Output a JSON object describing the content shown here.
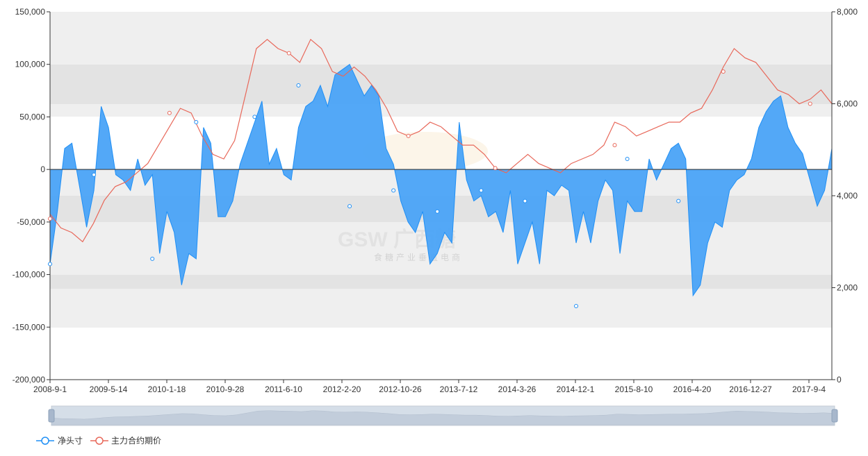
{
  "watermark": {
    "brand": "GSW 广西糖",
    "subtitle": "食糖产业垂直电商"
  },
  "colors": {
    "net_position": "#1f8ff5",
    "net_position_fill": "#4aa3f7",
    "futures_price": "#e8685a",
    "band": "#efefef",
    "band_dark": "#e3e3e3",
    "zoom_bg": "#d5dee8"
  },
  "chart_data": {
    "type": "area",
    "categories_shown": [
      "2008-9-1",
      "2009-5-14",
      "2010-1-18",
      "2010-9-28",
      "2011-6-10",
      "2012-2-20",
      "2012-10-26",
      "2013-7-12",
      "2014-3-26",
      "2014-12-1",
      "2015-8-10",
      "2016-4-20",
      "2016-12-27",
      "2017-9-4"
    ],
    "y_left": {
      "min": -200000,
      "max": 150000,
      "ticks": [
        "150,000",
        "100,000",
        "50,000",
        "0",
        "-50,000",
        "-100,000",
        "-150,000",
        "-200,000"
      ]
    },
    "y_right": {
      "min": 0,
      "max": 8000,
      "ticks": [
        "8,000",
        "6,000",
        "4,000",
        "2,000",
        "0"
      ]
    },
    "legend_position": "bottom-left",
    "series": [
      {
        "name": "净头寸",
        "axis": "left",
        "style": "area",
        "values": [
          -90000,
          -40000,
          20000,
          25000,
          -15000,
          -55000,
          -20000,
          60000,
          40000,
          -5000,
          -10000,
          -20000,
          10000,
          -15000,
          -5000,
          -80000,
          -40000,
          -60000,
          -110000,
          -80000,
          -85000,
          40000,
          25000,
          -45000,
          -45000,
          -30000,
          5000,
          25000,
          45000,
          65000,
          5000,
          20000,
          -5000,
          -10000,
          40000,
          60000,
          65000,
          80000,
          60000,
          90000,
          95000,
          100000,
          85000,
          70000,
          80000,
          70000,
          20000,
          5000,
          -30000,
          -50000,
          -60000,
          -40000,
          -90000,
          -80000,
          -60000,
          -70000,
          45000,
          -10000,
          -30000,
          -25000,
          -45000,
          -40000,
          -60000,
          -20000,
          -90000,
          -70000,
          -50000,
          -90000,
          -20000,
          -25000,
          -15000,
          -20000,
          -70000,
          -40000,
          -70000,
          -30000,
          -10000,
          -20000,
          -80000,
          -30000,
          -40000,
          -40000,
          10000,
          -10000,
          5000,
          20000,
          25000,
          10000,
          -120000,
          -110000,
          -70000,
          -50000,
          -55000,
          -20000,
          -10000,
          -5000,
          10000,
          40000,
          55000,
          65000,
          70000,
          40000,
          25000,
          15000,
          -10000,
          -35000,
          -20000,
          20000
        ],
        "markers": [
          [
            0,
            -90000
          ],
          [
            6,
            -5000
          ],
          [
            14,
            -85000
          ],
          [
            20,
            45000
          ],
          [
            28,
            50000
          ],
          [
            34,
            80000
          ],
          [
            41,
            -35000
          ],
          [
            47,
            -20000
          ],
          [
            53,
            -40000
          ],
          [
            59,
            -20000
          ],
          [
            65,
            -30000
          ],
          [
            72,
            -130000
          ],
          [
            79,
            10000
          ],
          [
            86,
            -30000
          ]
        ]
      },
      {
        "name": "主力合约期价",
        "axis": "right",
        "style": "line",
        "values": [
          3600,
          3300,
          3200,
          3000,
          3400,
          3900,
          4200,
          4300,
          4500,
          4700,
          5100,
          5500,
          5900,
          5800,
          5300,
          4900,
          4800,
          5200,
          6200,
          7200,
          7400,
          7200,
          7100,
          6900,
          7400,
          7200,
          6700,
          6600,
          6800,
          6600,
          6300,
          5900,
          5400,
          5300,
          5400,
          5600,
          5500,
          5300,
          5100,
          5100,
          4900,
          4600,
          4500,
          4700,
          4900,
          4700,
          4600,
          4500,
          4700,
          4800,
          4900,
          5100,
          5600,
          5500,
          5300,
          5400,
          5500,
          5600,
          5600,
          5800,
          5900,
          6300,
          6800,
          7200,
          7000,
          6900,
          6600,
          6300,
          6200,
          6000,
          6100,
          6300,
          6000
        ],
        "markers": [
          [
            0,
            3500
          ],
          [
            11,
            5800
          ],
          [
            22,
            7100
          ],
          [
            33,
            5300
          ],
          [
            41,
            4600
          ],
          [
            52,
            5100
          ],
          [
            62,
            6700
          ],
          [
            70,
            6000
          ]
        ]
      }
    ],
    "data_zoom": {
      "start": 0,
      "end": 100
    }
  }
}
